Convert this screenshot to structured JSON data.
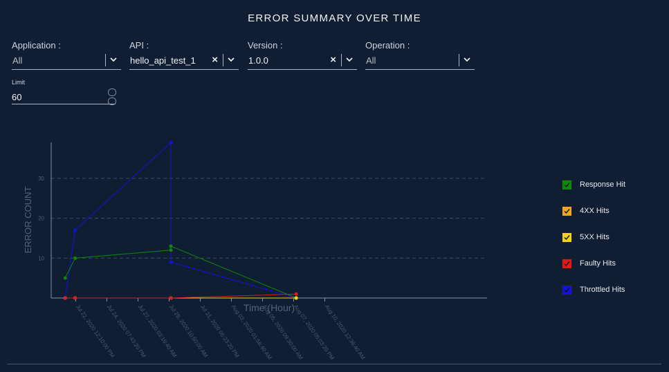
{
  "title": "ERROR SUMMARY OVER TIME",
  "filters": [
    {
      "label": "Application :",
      "value": "All",
      "placeholder": true,
      "clearable": false
    },
    {
      "label": "API :",
      "value": "hello_api_test_1",
      "placeholder": false,
      "clearable": true
    },
    {
      "label": "Version :",
      "value": "1.0.0",
      "placeholder": false,
      "clearable": true
    },
    {
      "label": "Operation :",
      "value": "All",
      "placeholder": true,
      "clearable": false
    }
  ],
  "clear_glyph": "×",
  "limit": {
    "label": "Limit",
    "value": "60"
  },
  "colors": {
    "background": "#0f1e33"
  },
  "chart_data": {
    "type": "line",
    "xlabel": "Time (Hour)",
    "ylabel": "ERROR COUNT",
    "ylim": [
      0,
      39
    ],
    "yticks": [
      10,
      20,
      30
    ],
    "grid": true,
    "legend_position": "right",
    "x_ticks": [
      "Jul 22, 2020 12:10:00 PM",
      "Jul 24, 2020 07:43:20 PM",
      "Jul 27, 2020 03:16:40 AM",
      "Jul 29, 2020 10:50:00 AM",
      "Jul 31, 2020 06:23:20 PM",
      "Aug 03, 2020 01:56:40 AM",
      "Aug 05, 2020 09:30:00 AM",
      "Aug 07, 2020 05:03:20 PM",
      "Aug 10, 2020 12:36:40 AM"
    ],
    "series": [
      {
        "name": "Response Hit",
        "color": "#0b8a0b",
        "points": [
          [
            "2020-07-21 15:30",
            5
          ],
          [
            "2020-07-22 11:00",
            10
          ],
          [
            "2020-07-30 07:00",
            12
          ],
          [
            "2020-07-30 07:00",
            13
          ],
          [
            "2020-08-09 13:00",
            0
          ]
        ]
      },
      {
        "name": "4XX Hits",
        "color": "#f0a81e",
        "points": [
          [
            "2020-07-21 15:30",
            0
          ],
          [
            "2020-07-22 11:00",
            0
          ],
          [
            "2020-07-30 07:00",
            0
          ],
          [
            "2020-08-09 13:00",
            0
          ]
        ]
      },
      {
        "name": "5XX Hits",
        "color": "#f3d21a",
        "points": [
          [
            "2020-07-21 15:30",
            0
          ],
          [
            "2020-07-22 11:00",
            0
          ],
          [
            "2020-07-30 07:00",
            0
          ],
          [
            "2020-08-09 13:00",
            0
          ]
        ]
      },
      {
        "name": "Faulty Hits",
        "color": "#e31a1a",
        "points": [
          [
            "2020-07-21 15:30",
            0
          ],
          [
            "2020-07-22 11:00",
            0
          ],
          [
            "2020-07-30 07:00",
            0
          ],
          [
            "2020-08-09 13:00",
            1
          ]
        ]
      },
      {
        "name": "Throttled Hits",
        "color": "#1111e0",
        "points": [
          [
            "2020-07-21 15:30",
            0
          ],
          [
            "2020-07-22 11:00",
            17
          ],
          [
            "2020-07-30 07:00",
            39
          ],
          [
            "2020-07-30 07:00",
            9
          ],
          [
            "2020-08-09 13:00",
            0
          ]
        ]
      }
    ]
  }
}
